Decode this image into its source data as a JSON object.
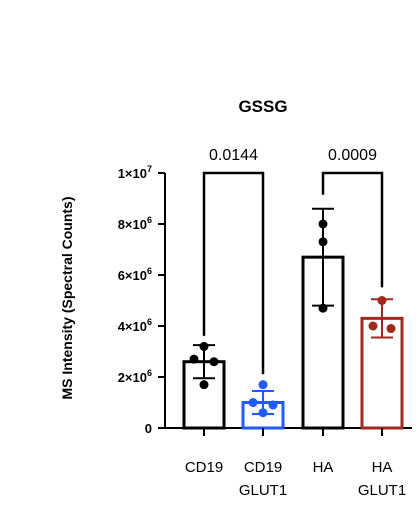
{
  "chart_data": {
    "type": "bar",
    "title": "GSSG",
    "ylabel": "MS Intensity (Spectral Counts)",
    "ylim": [
      0,
      10000000
    ],
    "yticks": [
      {
        "value": 0,
        "label": "0",
        "exp": ""
      },
      {
        "value": 2000000,
        "label": "2×10",
        "exp": "6"
      },
      {
        "value": 4000000,
        "label": "4×10",
        "exp": "6"
      },
      {
        "value": 6000000,
        "label": "6×10",
        "exp": "6"
      },
      {
        "value": 8000000,
        "label": "8×10",
        "exp": "6"
      },
      {
        "value": 10000000,
        "label": "1×10",
        "exp": "7"
      }
    ],
    "categories": [
      {
        "line1": "CD19",
        "line2": ""
      },
      {
        "line1": "CD19",
        "line2": "GLUT1"
      },
      {
        "line1": "HA",
        "line2": ""
      },
      {
        "line1": "HA",
        "line2": "GLUT1"
      }
    ],
    "bars": [
      {
        "mean": 2600000,
        "sd": 650000,
        "color": "#000000",
        "points": [
          3200000,
          2700000,
          2600000,
          1700000
        ]
      },
      {
        "mean": 1000000,
        "sd": 450000,
        "color": "#1f5bff",
        "points": [
          1700000,
          1000000,
          900000,
          600000
        ]
      },
      {
        "mean": 6700000,
        "sd": 1900000,
        "color": "#000000",
        "points": [
          8000000,
          7300000,
          4700000
        ]
      },
      {
        "mean": 4300000,
        "sd": 750000,
        "color": "#a0281c",
        "points": [
          5000000,
          4000000,
          3900000
        ]
      }
    ],
    "comparisons": [
      {
        "from": 0,
        "to": 1,
        "label": "0.0144"
      },
      {
        "from": 2,
        "to": 3,
        "label": "0.0009"
      }
    ]
  }
}
